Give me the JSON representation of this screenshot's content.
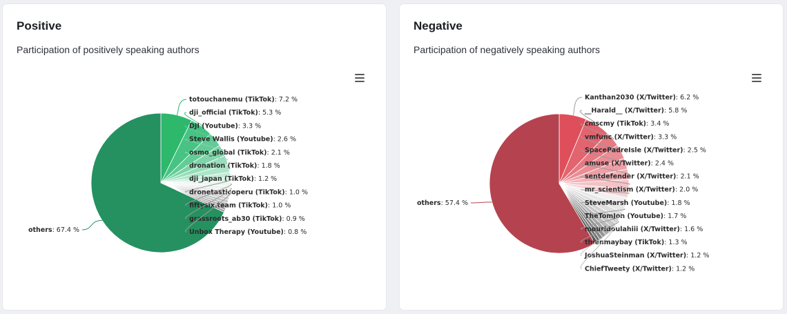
{
  "cards": [
    {
      "title": "Positive",
      "subtitle": "Participation of positively speaking authors",
      "menu_icon": "hamburger-menu-icon"
    },
    {
      "title": "Negative",
      "subtitle": "Participation of negatively speaking authors",
      "menu_icon": "hamburger-menu-icon"
    }
  ],
  "chart_data": [
    {
      "type": "pie",
      "title": "Positive",
      "subtitle": "Participation of positively speaking authors",
      "start_angle": 0,
      "direction": "clockwise",
      "slices": [
        {
          "label": "totouchanemu (TikTok)",
          "value": 7.2,
          "color": "#2db86c"
        },
        {
          "label": "dji_official (TikTok)",
          "value": 5.3,
          "color": "#47c383"
        },
        {
          "label": "DJI (Youtube)",
          "value": 3.3,
          "color": "#62cb96"
        },
        {
          "label": "Steve Wallis (Youtube)",
          "value": 2.6,
          "color": "#7dd4a8"
        },
        {
          "label": "osmo_global (TikTok)",
          "value": 2.1,
          "color": "#97ddb9"
        },
        {
          "label": "dronation (TikTok)",
          "value": 1.8,
          "color": "#ade5c8"
        },
        {
          "label": "dji_japan (TikTok)",
          "value": 1.2,
          "color": "#c3edd7"
        },
        {
          "label": "dronetasticoperu (TikTok)",
          "value": 1.0,
          "color": "#d6f3e4"
        },
        {
          "label": "fiftysix.team (TikTok)",
          "value": 1.0,
          "color": "#e8f8ef"
        },
        {
          "label": "grassroots_ab30 (TikTok)",
          "value": 0.9,
          "color": "#f1f1f1"
        },
        {
          "label": "Unbox Therapy (Youtube)",
          "value": 0.8,
          "color": "#e6e6e6"
        },
        {
          "label": "",
          "value": 0.8,
          "color": "#dcdcdc"
        },
        {
          "label": "",
          "value": 0.7,
          "color": "#d2d2d2"
        },
        {
          "label": "",
          "value": 0.7,
          "color": "#c6c6c6"
        },
        {
          "label": "",
          "value": 0.6,
          "color": "#bbbbbb"
        },
        {
          "label": "",
          "value": 0.6,
          "color": "#b0b0b0"
        },
        {
          "label": "",
          "value": 0.5,
          "color": "#a5a5a5"
        },
        {
          "label": "",
          "value": 0.5,
          "color": "#999999"
        },
        {
          "label": "others",
          "value": 67.4,
          "color": "#259160"
        }
      ]
    },
    {
      "type": "pie",
      "title": "Negative",
      "subtitle": "Participation of negatively speaking authors",
      "start_angle": 0,
      "direction": "clockwise",
      "slices": [
        {
          "label": "Kanthan2030 (X/Twitter)",
          "value": 6.2,
          "color": "#de4f5b"
        },
        {
          "label": "__Harald__ (X/Twitter)",
          "value": 5.8,
          "color": "#e2646e"
        },
        {
          "label": "cmscmy (TikTok)",
          "value": 3.4,
          "color": "#e67982"
        },
        {
          "label": "vmfunc (X/Twitter)",
          "value": 3.3,
          "color": "#ea8d95"
        },
        {
          "label": "SpacePadreIsle (X/Twitter)",
          "value": 2.5,
          "color": "#ee9fa6"
        },
        {
          "label": "amuse (X/Twitter)",
          "value": 2.4,
          "color": "#f2b1b6"
        },
        {
          "label": "sentdefender (X/Twitter)",
          "value": 2.1,
          "color": "#f5c2c6"
        },
        {
          "label": "mr_scientism (X/Twitter)",
          "value": 2.0,
          "color": "#f8d2d5"
        },
        {
          "label": "SteveMarsh (Youtube)",
          "value": 1.8,
          "color": "#f1f1f1"
        },
        {
          "label": "TheTomJon (Youtube)",
          "value": 1.7,
          "color": "#e8e8e8"
        },
        {
          "label": "mouridoulahiii (X/Twitter)",
          "value": 1.6,
          "color": "#dedede"
        },
        {
          "label": "thienmaybay (TikTok)",
          "value": 1.3,
          "color": "#d3d3d3"
        },
        {
          "label": "JoshuaSteinman (X/Twitter)",
          "value": 1.2,
          "color": "#c8c8c8"
        },
        {
          "label": "ChiefTweety (X/Twitter)",
          "value": 1.2,
          "color": "#bcbcbc"
        },
        {
          "label": "",
          "value": 1.0,
          "color": "#a8a8a8"
        },
        {
          "label": "",
          "value": 0.9,
          "color": "#969696"
        },
        {
          "label": "",
          "value": 0.8,
          "color": "#848484"
        },
        {
          "label": "",
          "value": 0.7,
          "color": "#727272"
        },
        {
          "label": "",
          "value": 0.7,
          "color": "#5e5e5e"
        },
        {
          "label": "others",
          "value": 57.4,
          "color": "#b5434f"
        }
      ]
    }
  ]
}
